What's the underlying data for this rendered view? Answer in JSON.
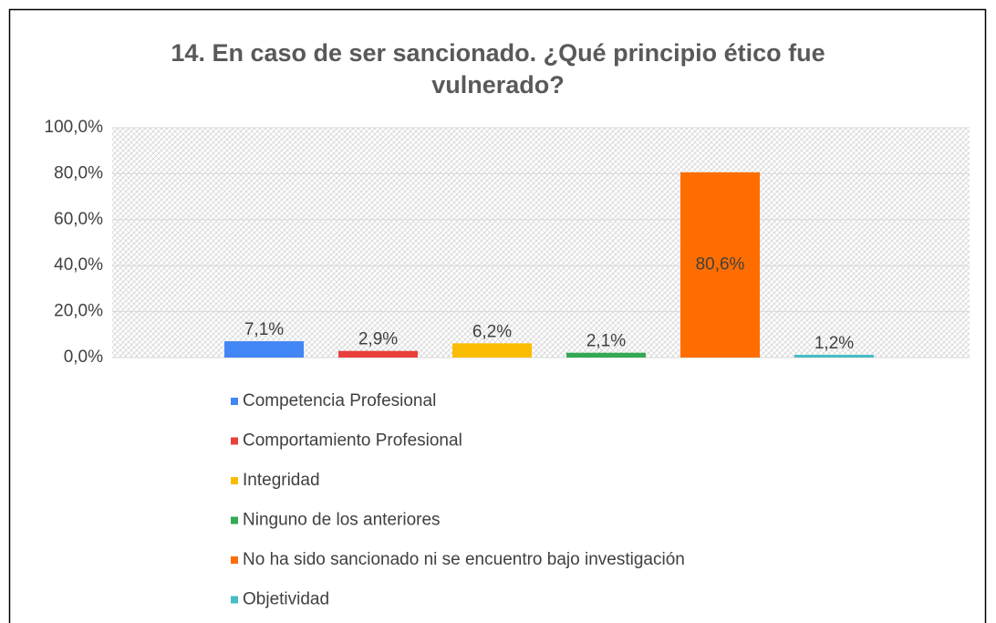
{
  "chart_data": {
    "type": "bar",
    "title": "14. En caso de ser sancionado. ¿Qué principio ético fue vulnerado?",
    "categories": [
      null
    ],
    "series": [
      {
        "name": "Competencia Profesional",
        "color": "#4285f4",
        "values": [
          7.1
        ],
        "value_labels": [
          "7,1%"
        ]
      },
      {
        "name": "Comportamiento Profesional",
        "color": "#e8413c",
        "values": [
          2.9
        ],
        "value_labels": [
          "2,9%"
        ]
      },
      {
        "name": "Integridad",
        "color": "#fbbc04",
        "values": [
          6.2
        ],
        "value_labels": [
          "6,2%"
        ]
      },
      {
        "name": "Ninguno de los anteriores",
        "color": "#34a853",
        "values": [
          2.1
        ],
        "value_labels": [
          "2,1%"
        ]
      },
      {
        "name": "No ha sido sancionado ni se encuentro bajo investigación",
        "color": "#ff6d01",
        "values": [
          80.6
        ],
        "value_labels": [
          "80,6%"
        ]
      },
      {
        "name": "Objetividad",
        "color": "#46bdc6",
        "values": [
          1.2
        ],
        "value_labels": [
          "1,2%"
        ]
      }
    ],
    "ylim": [
      0,
      100
    ],
    "yticks": [
      {
        "value": 0,
        "label": "0,0%"
      },
      {
        "value": 20,
        "label": "20,0%"
      },
      {
        "value": 40,
        "label": "40,0%"
      },
      {
        "value": 60,
        "label": "60,0%"
      },
      {
        "value": 80,
        "label": "80,0%"
      },
      {
        "value": 100,
        "label": "100,0%"
      }
    ],
    "grid": true,
    "legend": "bottom"
  }
}
